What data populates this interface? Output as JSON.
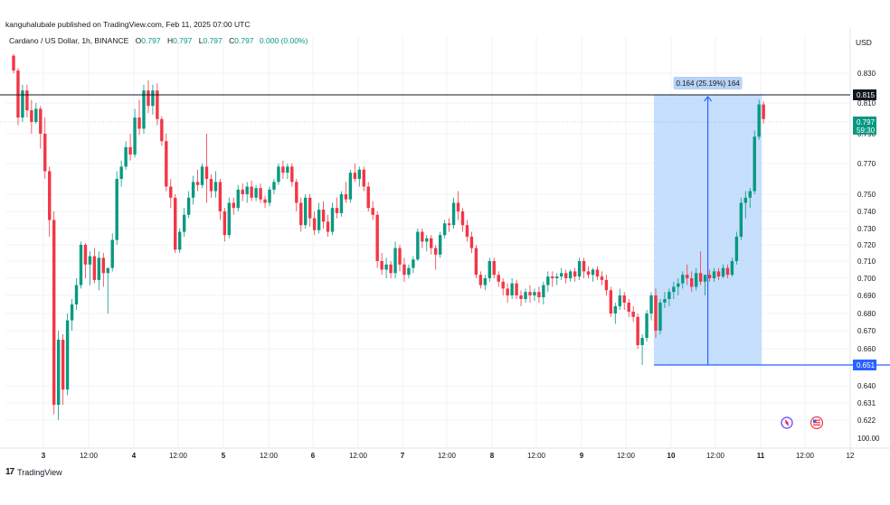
{
  "header": {
    "published": "kanguhalubale published on TradingView.com, Feb 11, 2025 07:00 UTC",
    "symbol": "Cardano / US Dollar, 1h, BINANCE",
    "ohlc": [
      {
        "k": "O",
        "v": "0.797"
      },
      {
        "k": "H",
        "v": "0.797"
      },
      {
        "k": "L",
        "v": "0.797"
      },
      {
        "k": "C",
        "v": "0.797"
      }
    ],
    "change": "0.000 (0.00%)",
    "currency": "USD"
  },
  "footer": {
    "brand": "TradingView",
    "brand_logo": "17"
  },
  "colors": {
    "up": "#089981",
    "down": "#f23645",
    "grid": "#f0f3fa",
    "range_fill": "#bbd9fb",
    "range_line": "#2962ff",
    "level": "#131722"
  },
  "chart_data": {
    "type": "candlestick",
    "title": "Cardano / US Dollar, 1h, BINANCE",
    "ylim": [
      0.615,
      0.86
    ],
    "y_ticks": [
      "0.830",
      "0.810",
      "0.790",
      "0.770",
      "0.750",
      "0.740",
      "0.730",
      "0.720",
      "0.710",
      "0.700",
      "0.690",
      "0.680",
      "0.670",
      "0.660",
      "0.640",
      "0.631",
      "0.622"
    ],
    "x_ticks": [
      "3",
      "12:00",
      "4",
      "12:00",
      "5",
      "12:00",
      "6",
      "12:00",
      "7",
      "12:00",
      "8",
      "12:00",
      "9",
      "12:00",
      "10",
      "12:00",
      "11",
      "12:00",
      "12"
    ],
    "x_tick_bold": [
      "3",
      "4",
      "5",
      "6",
      "7",
      "8",
      "9",
      "10",
      "11"
    ],
    "extra_scale_label": "100.00",
    "last_price": {
      "value": 0.797,
      "label": "0.797",
      "countdown": "59:30"
    },
    "resistance": {
      "value": 0.815,
      "label": "0.815"
    },
    "price_range": {
      "start_index": 143,
      "end_index": 166,
      "low": 0.651,
      "high": 0.815,
      "low_label": "0.651",
      "label": "0.164 (25.19%) 164"
    },
    "ohlc_series": [
      {
        "o": 0.85,
        "h": 0.852,
        "l": 0.83,
        "c": 0.833
      },
      {
        "o": 0.833,
        "h": 0.836,
        "l": 0.795,
        "c": 0.8
      },
      {
        "o": 0.8,
        "h": 0.822,
        "l": 0.797,
        "c": 0.818
      },
      {
        "o": 0.818,
        "h": 0.822,
        "l": 0.8,
        "c": 0.805
      },
      {
        "o": 0.805,
        "h": 0.812,
        "l": 0.79,
        "c": 0.797
      },
      {
        "o": 0.797,
        "h": 0.81,
        "l": 0.796,
        "c": 0.806
      },
      {
        "o": 0.806,
        "h": 0.808,
        "l": 0.78,
        "c": 0.79
      },
      {
        "o": 0.79,
        "h": 0.8,
        "l": 0.76,
        "c": 0.765
      },
      {
        "o": 0.765,
        "h": 0.768,
        "l": 0.725,
        "c": 0.735
      },
      {
        "o": 0.735,
        "h": 0.74,
        "l": 0.625,
        "c": 0.63
      },
      {
        "o": 0.63,
        "h": 0.67,
        "l": 0.622,
        "c": 0.665
      },
      {
        "o": 0.665,
        "h": 0.668,
        "l": 0.63,
        "c": 0.638
      },
      {
        "o": 0.638,
        "h": 0.68,
        "l": 0.635,
        "c": 0.676
      },
      {
        "o": 0.676,
        "h": 0.688,
        "l": 0.67,
        "c": 0.685
      },
      {
        "o": 0.685,
        "h": 0.7,
        "l": 0.682,
        "c": 0.696
      },
      {
        "o": 0.696,
        "h": 0.722,
        "l": 0.694,
        "c": 0.72
      },
      {
        "o": 0.72,
        "h": 0.721,
        "l": 0.7,
        "c": 0.708
      },
      {
        "o": 0.708,
        "h": 0.716,
        "l": 0.696,
        "c": 0.713
      },
      {
        "o": 0.713,
        "h": 0.718,
        "l": 0.697,
        "c": 0.699
      },
      {
        "o": 0.699,
        "h": 0.716,
        "l": 0.693,
        "c": 0.712
      },
      {
        "o": 0.712,
        "h": 0.715,
        "l": 0.695,
        "c": 0.703
      },
      {
        "o": 0.703,
        "h": 0.706,
        "l": 0.68,
        "c": 0.706
      },
      {
        "o": 0.706,
        "h": 0.727,
        "l": 0.704,
        "c": 0.723
      },
      {
        "o": 0.723,
        "h": 0.765,
        "l": 0.72,
        "c": 0.76
      },
      {
        "o": 0.76,
        "h": 0.772,
        "l": 0.755,
        "c": 0.768
      },
      {
        "o": 0.768,
        "h": 0.785,
        "l": 0.766,
        "c": 0.781
      },
      {
        "o": 0.781,
        "h": 0.79,
        "l": 0.772,
        "c": 0.776
      },
      {
        "o": 0.776,
        "h": 0.806,
        "l": 0.774,
        "c": 0.8
      },
      {
        "o": 0.8,
        "h": 0.812,
        "l": 0.789,
        "c": 0.793
      },
      {
        "o": 0.793,
        "h": 0.822,
        "l": 0.79,
        "c": 0.818
      },
      {
        "o": 0.818,
        "h": 0.825,
        "l": 0.803,
        "c": 0.808
      },
      {
        "o": 0.808,
        "h": 0.822,
        "l": 0.802,
        "c": 0.818
      },
      {
        "o": 0.818,
        "h": 0.823,
        "l": 0.795,
        "c": 0.799
      },
      {
        "o": 0.799,
        "h": 0.801,
        "l": 0.782,
        "c": 0.785
      },
      {
        "o": 0.785,
        "h": 0.79,
        "l": 0.752,
        "c": 0.755
      },
      {
        "o": 0.755,
        "h": 0.76,
        "l": 0.742,
        "c": 0.748
      },
      {
        "o": 0.748,
        "h": 0.75,
        "l": 0.715,
        "c": 0.717
      },
      {
        "o": 0.717,
        "h": 0.73,
        "l": 0.715,
        "c": 0.728
      },
      {
        "o": 0.728,
        "h": 0.742,
        "l": 0.725,
        "c": 0.738
      },
      {
        "o": 0.738,
        "h": 0.752,
        "l": 0.736,
        "c": 0.748
      },
      {
        "o": 0.748,
        "h": 0.762,
        "l": 0.744,
        "c": 0.758
      },
      {
        "o": 0.758,
        "h": 0.766,
        "l": 0.752,
        "c": 0.756
      },
      {
        "o": 0.756,
        "h": 0.77,
        "l": 0.754,
        "c": 0.768
      },
      {
        "o": 0.768,
        "h": 0.79,
        "l": 0.745,
        "c": 0.76
      },
      {
        "o": 0.76,
        "h": 0.763,
        "l": 0.748,
        "c": 0.752
      },
      {
        "o": 0.752,
        "h": 0.765,
        "l": 0.748,
        "c": 0.758
      },
      {
        "o": 0.758,
        "h": 0.76,
        "l": 0.735,
        "c": 0.74
      },
      {
        "o": 0.74,
        "h": 0.742,
        "l": 0.722,
        "c": 0.726
      },
      {
        "o": 0.726,
        "h": 0.748,
        "l": 0.724,
        "c": 0.745
      },
      {
        "o": 0.745,
        "h": 0.748,
        "l": 0.738,
        "c": 0.742
      },
      {
        "o": 0.742,
        "h": 0.756,
        "l": 0.74,
        "c": 0.753
      },
      {
        "o": 0.753,
        "h": 0.757,
        "l": 0.746,
        "c": 0.75
      },
      {
        "o": 0.75,
        "h": 0.758,
        "l": 0.745,
        "c": 0.755
      },
      {
        "o": 0.755,
        "h": 0.759,
        "l": 0.746,
        "c": 0.748
      },
      {
        "o": 0.748,
        "h": 0.756,
        "l": 0.746,
        "c": 0.754
      },
      {
        "o": 0.754,
        "h": 0.757,
        "l": 0.745,
        "c": 0.747
      },
      {
        "o": 0.747,
        "h": 0.749,
        "l": 0.742,
        "c": 0.745
      },
      {
        "o": 0.745,
        "h": 0.755,
        "l": 0.743,
        "c": 0.753
      },
      {
        "o": 0.753,
        "h": 0.76,
        "l": 0.75,
        "c": 0.758
      },
      {
        "o": 0.758,
        "h": 0.77,
        "l": 0.756,
        "c": 0.768
      },
      {
        "o": 0.768,
        "h": 0.772,
        "l": 0.76,
        "c": 0.764
      },
      {
        "o": 0.764,
        "h": 0.77,
        "l": 0.76,
        "c": 0.768
      },
      {
        "o": 0.768,
        "h": 0.77,
        "l": 0.755,
        "c": 0.758
      },
      {
        "o": 0.758,
        "h": 0.76,
        "l": 0.74,
        "c": 0.745
      },
      {
        "o": 0.745,
        "h": 0.748,
        "l": 0.728,
        "c": 0.732
      },
      {
        "o": 0.732,
        "h": 0.75,
        "l": 0.73,
        "c": 0.748
      },
      {
        "o": 0.748,
        "h": 0.75,
        "l": 0.731,
        "c": 0.736
      },
      {
        "o": 0.736,
        "h": 0.74,
        "l": 0.726,
        "c": 0.729
      },
      {
        "o": 0.729,
        "h": 0.745,
        "l": 0.727,
        "c": 0.741
      },
      {
        "o": 0.741,
        "h": 0.746,
        "l": 0.73,
        "c": 0.734
      },
      {
        "o": 0.734,
        "h": 0.738,
        "l": 0.725,
        "c": 0.728
      },
      {
        "o": 0.728,
        "h": 0.745,
        "l": 0.726,
        "c": 0.742
      },
      {
        "o": 0.742,
        "h": 0.748,
        "l": 0.736,
        "c": 0.739
      },
      {
        "o": 0.739,
        "h": 0.752,
        "l": 0.737,
        "c": 0.75
      },
      {
        "o": 0.75,
        "h": 0.758,
        "l": 0.745,
        "c": 0.747
      },
      {
        "o": 0.747,
        "h": 0.766,
        "l": 0.745,
        "c": 0.764
      },
      {
        "o": 0.764,
        "h": 0.77,
        "l": 0.758,
        "c": 0.76
      },
      {
        "o": 0.76,
        "h": 0.768,
        "l": 0.755,
        "c": 0.766
      },
      {
        "o": 0.766,
        "h": 0.768,
        "l": 0.752,
        "c": 0.755
      },
      {
        "o": 0.755,
        "h": 0.758,
        "l": 0.74,
        "c": 0.742
      },
      {
        "o": 0.742,
        "h": 0.746,
        "l": 0.735,
        "c": 0.738
      },
      {
        "o": 0.738,
        "h": 0.74,
        "l": 0.706,
        "c": 0.71
      },
      {
        "o": 0.71,
        "h": 0.715,
        "l": 0.702,
        "c": 0.705
      },
      {
        "o": 0.705,
        "h": 0.712,
        "l": 0.7,
        "c": 0.708
      },
      {
        "o": 0.708,
        "h": 0.71,
        "l": 0.7,
        "c": 0.703
      },
      {
        "o": 0.703,
        "h": 0.722,
        "l": 0.7,
        "c": 0.718
      },
      {
        "o": 0.718,
        "h": 0.72,
        "l": 0.704,
        "c": 0.708
      },
      {
        "o": 0.708,
        "h": 0.712,
        "l": 0.698,
        "c": 0.702
      },
      {
        "o": 0.702,
        "h": 0.708,
        "l": 0.7,
        "c": 0.706
      },
      {
        "o": 0.706,
        "h": 0.713,
        "l": 0.703,
        "c": 0.711
      },
      {
        "o": 0.711,
        "h": 0.73,
        "l": 0.71,
        "c": 0.728
      },
      {
        "o": 0.728,
        "h": 0.73,
        "l": 0.718,
        "c": 0.722
      },
      {
        "o": 0.722,
        "h": 0.726,
        "l": 0.716,
        "c": 0.724
      },
      {
        "o": 0.724,
        "h": 0.726,
        "l": 0.714,
        "c": 0.718
      },
      {
        "o": 0.718,
        "h": 0.72,
        "l": 0.705,
        "c": 0.714
      },
      {
        "o": 0.714,
        "h": 0.728,
        "l": 0.712,
        "c": 0.726
      },
      {
        "o": 0.726,
        "h": 0.735,
        "l": 0.724,
        "c": 0.733
      },
      {
        "o": 0.733,
        "h": 0.736,
        "l": 0.728,
        "c": 0.732
      },
      {
        "o": 0.732,
        "h": 0.748,
        "l": 0.73,
        "c": 0.745
      },
      {
        "o": 0.745,
        "h": 0.752,
        "l": 0.735,
        "c": 0.74
      },
      {
        "o": 0.74,
        "h": 0.742,
        "l": 0.728,
        "c": 0.732
      },
      {
        "o": 0.732,
        "h": 0.735,
        "l": 0.722,
        "c": 0.725
      },
      {
        "o": 0.725,
        "h": 0.728,
        "l": 0.715,
        "c": 0.718
      },
      {
        "o": 0.718,
        "h": 0.72,
        "l": 0.7,
        "c": 0.702
      },
      {
        "o": 0.702,
        "h": 0.704,
        "l": 0.694,
        "c": 0.696
      },
      {
        "o": 0.696,
        "h": 0.702,
        "l": 0.693,
        "c": 0.7
      },
      {
        "o": 0.7,
        "h": 0.712,
        "l": 0.698,
        "c": 0.71
      },
      {
        "o": 0.71,
        "h": 0.712,
        "l": 0.7,
        "c": 0.702
      },
      {
        "o": 0.702,
        "h": 0.704,
        "l": 0.695,
        "c": 0.698
      },
      {
        "o": 0.698,
        "h": 0.7,
        "l": 0.69,
        "c": 0.694
      },
      {
        "o": 0.694,
        "h": 0.697,
        "l": 0.686,
        "c": 0.69
      },
      {
        "o": 0.69,
        "h": 0.7,
        "l": 0.688,
        "c": 0.697
      },
      {
        "o": 0.697,
        "h": 0.699,
        "l": 0.688,
        "c": 0.69
      },
      {
        "o": 0.69,
        "h": 0.693,
        "l": 0.684,
        "c": 0.688
      },
      {
        "o": 0.688,
        "h": 0.694,
        "l": 0.686,
        "c": 0.692
      },
      {
        "o": 0.692,
        "h": 0.696,
        "l": 0.686,
        "c": 0.69
      },
      {
        "o": 0.69,
        "h": 0.694,
        "l": 0.687,
        "c": 0.692
      },
      {
        "o": 0.692,
        "h": 0.695,
        "l": 0.686,
        "c": 0.689
      },
      {
        "o": 0.689,
        "h": 0.698,
        "l": 0.685,
        "c": 0.696
      },
      {
        "o": 0.696,
        "h": 0.704,
        "l": 0.692,
        "c": 0.701
      },
      {
        "o": 0.701,
        "h": 0.704,
        "l": 0.695,
        "c": 0.7
      },
      {
        "o": 0.7,
        "h": 0.703,
        "l": 0.696,
        "c": 0.701
      },
      {
        "o": 0.701,
        "h": 0.706,
        "l": 0.699,
        "c": 0.703
      },
      {
        "o": 0.703,
        "h": 0.705,
        "l": 0.697,
        "c": 0.7
      },
      {
        "o": 0.7,
        "h": 0.705,
        "l": 0.698,
        "c": 0.704
      },
      {
        "o": 0.704,
        "h": 0.706,
        "l": 0.698,
        "c": 0.701
      },
      {
        "o": 0.701,
        "h": 0.712,
        "l": 0.699,
        "c": 0.71
      },
      {
        "o": 0.71,
        "h": 0.712,
        "l": 0.7,
        "c": 0.704
      },
      {
        "o": 0.704,
        "h": 0.707,
        "l": 0.7,
        "c": 0.702
      },
      {
        "o": 0.702,
        "h": 0.706,
        "l": 0.698,
        "c": 0.705
      },
      {
        "o": 0.705,
        "h": 0.707,
        "l": 0.699,
        "c": 0.701
      },
      {
        "o": 0.701,
        "h": 0.704,
        "l": 0.696,
        "c": 0.699
      },
      {
        "o": 0.699,
        "h": 0.702,
        "l": 0.69,
        "c": 0.693
      },
      {
        "o": 0.693,
        "h": 0.695,
        "l": 0.678,
        "c": 0.68
      },
      {
        "o": 0.68,
        "h": 0.686,
        "l": 0.674,
        "c": 0.684
      },
      {
        "o": 0.684,
        "h": 0.694,
        "l": 0.682,
        "c": 0.69
      },
      {
        "o": 0.69,
        "h": 0.692,
        "l": 0.682,
        "c": 0.686
      },
      {
        "o": 0.686,
        "h": 0.688,
        "l": 0.678,
        "c": 0.681
      },
      {
        "o": 0.681,
        "h": 0.684,
        "l": 0.675,
        "c": 0.678
      },
      {
        "o": 0.678,
        "h": 0.68,
        "l": 0.66,
        "c": 0.662
      },
      {
        "o": 0.662,
        "h": 0.668,
        "l": 0.651,
        "c": 0.666
      },
      {
        "o": 0.666,
        "h": 0.682,
        "l": 0.664,
        "c": 0.68
      },
      {
        "o": 0.68,
        "h": 0.692,
        "l": 0.676,
        "c": 0.69
      },
      {
        "o": 0.69,
        "h": 0.694,
        "l": 0.666,
        "c": 0.67
      },
      {
        "o": 0.67,
        "h": 0.688,
        "l": 0.668,
        "c": 0.686
      },
      {
        "o": 0.686,
        "h": 0.692,
        "l": 0.683,
        "c": 0.688
      },
      {
        "o": 0.688,
        "h": 0.694,
        "l": 0.684,
        "c": 0.692
      },
      {
        "o": 0.692,
        "h": 0.698,
        "l": 0.688,
        "c": 0.695
      },
      {
        "o": 0.695,
        "h": 0.7,
        "l": 0.69,
        "c": 0.697
      },
      {
        "o": 0.697,
        "h": 0.704,
        "l": 0.694,
        "c": 0.702
      },
      {
        "o": 0.702,
        "h": 0.708,
        "l": 0.696,
        "c": 0.7
      },
      {
        "o": 0.7,
        "h": 0.704,
        "l": 0.692,
        "c": 0.695
      },
      {
        "o": 0.695,
        "h": 0.706,
        "l": 0.693,
        "c": 0.703
      },
      {
        "o": 0.703,
        "h": 0.716,
        "l": 0.696,
        "c": 0.698
      },
      {
        "o": 0.698,
        "h": 0.7,
        "l": 0.69,
        "c": 0.702
      },
      {
        "o": 0.702,
        "h": 0.705,
        "l": 0.698,
        "c": 0.7
      },
      {
        "o": 0.7,
        "h": 0.706,
        "l": 0.698,
        "c": 0.704
      },
      {
        "o": 0.704,
        "h": 0.706,
        "l": 0.699,
        "c": 0.701
      },
      {
        "o": 0.701,
        "h": 0.708,
        "l": 0.7,
        "c": 0.706
      },
      {
        "o": 0.706,
        "h": 0.708,
        "l": 0.7,
        "c": 0.702
      },
      {
        "o": 0.702,
        "h": 0.712,
        "l": 0.701,
        "c": 0.71
      },
      {
        "o": 0.71,
        "h": 0.728,
        "l": 0.708,
        "c": 0.725
      },
      {
        "o": 0.725,
        "h": 0.748,
        "l": 0.723,
        "c": 0.745
      },
      {
        "o": 0.745,
        "h": 0.752,
        "l": 0.736,
        "c": 0.748
      },
      {
        "o": 0.748,
        "h": 0.754,
        "l": 0.742,
        "c": 0.752
      },
      {
        "o": 0.752,
        "h": 0.792,
        "l": 0.75,
        "c": 0.788
      },
      {
        "o": 0.788,
        "h": 0.812,
        "l": 0.786,
        "c": 0.809
      },
      {
        "o": 0.809,
        "h": 0.811,
        "l": 0.796,
        "c": 0.799
      }
    ]
  }
}
